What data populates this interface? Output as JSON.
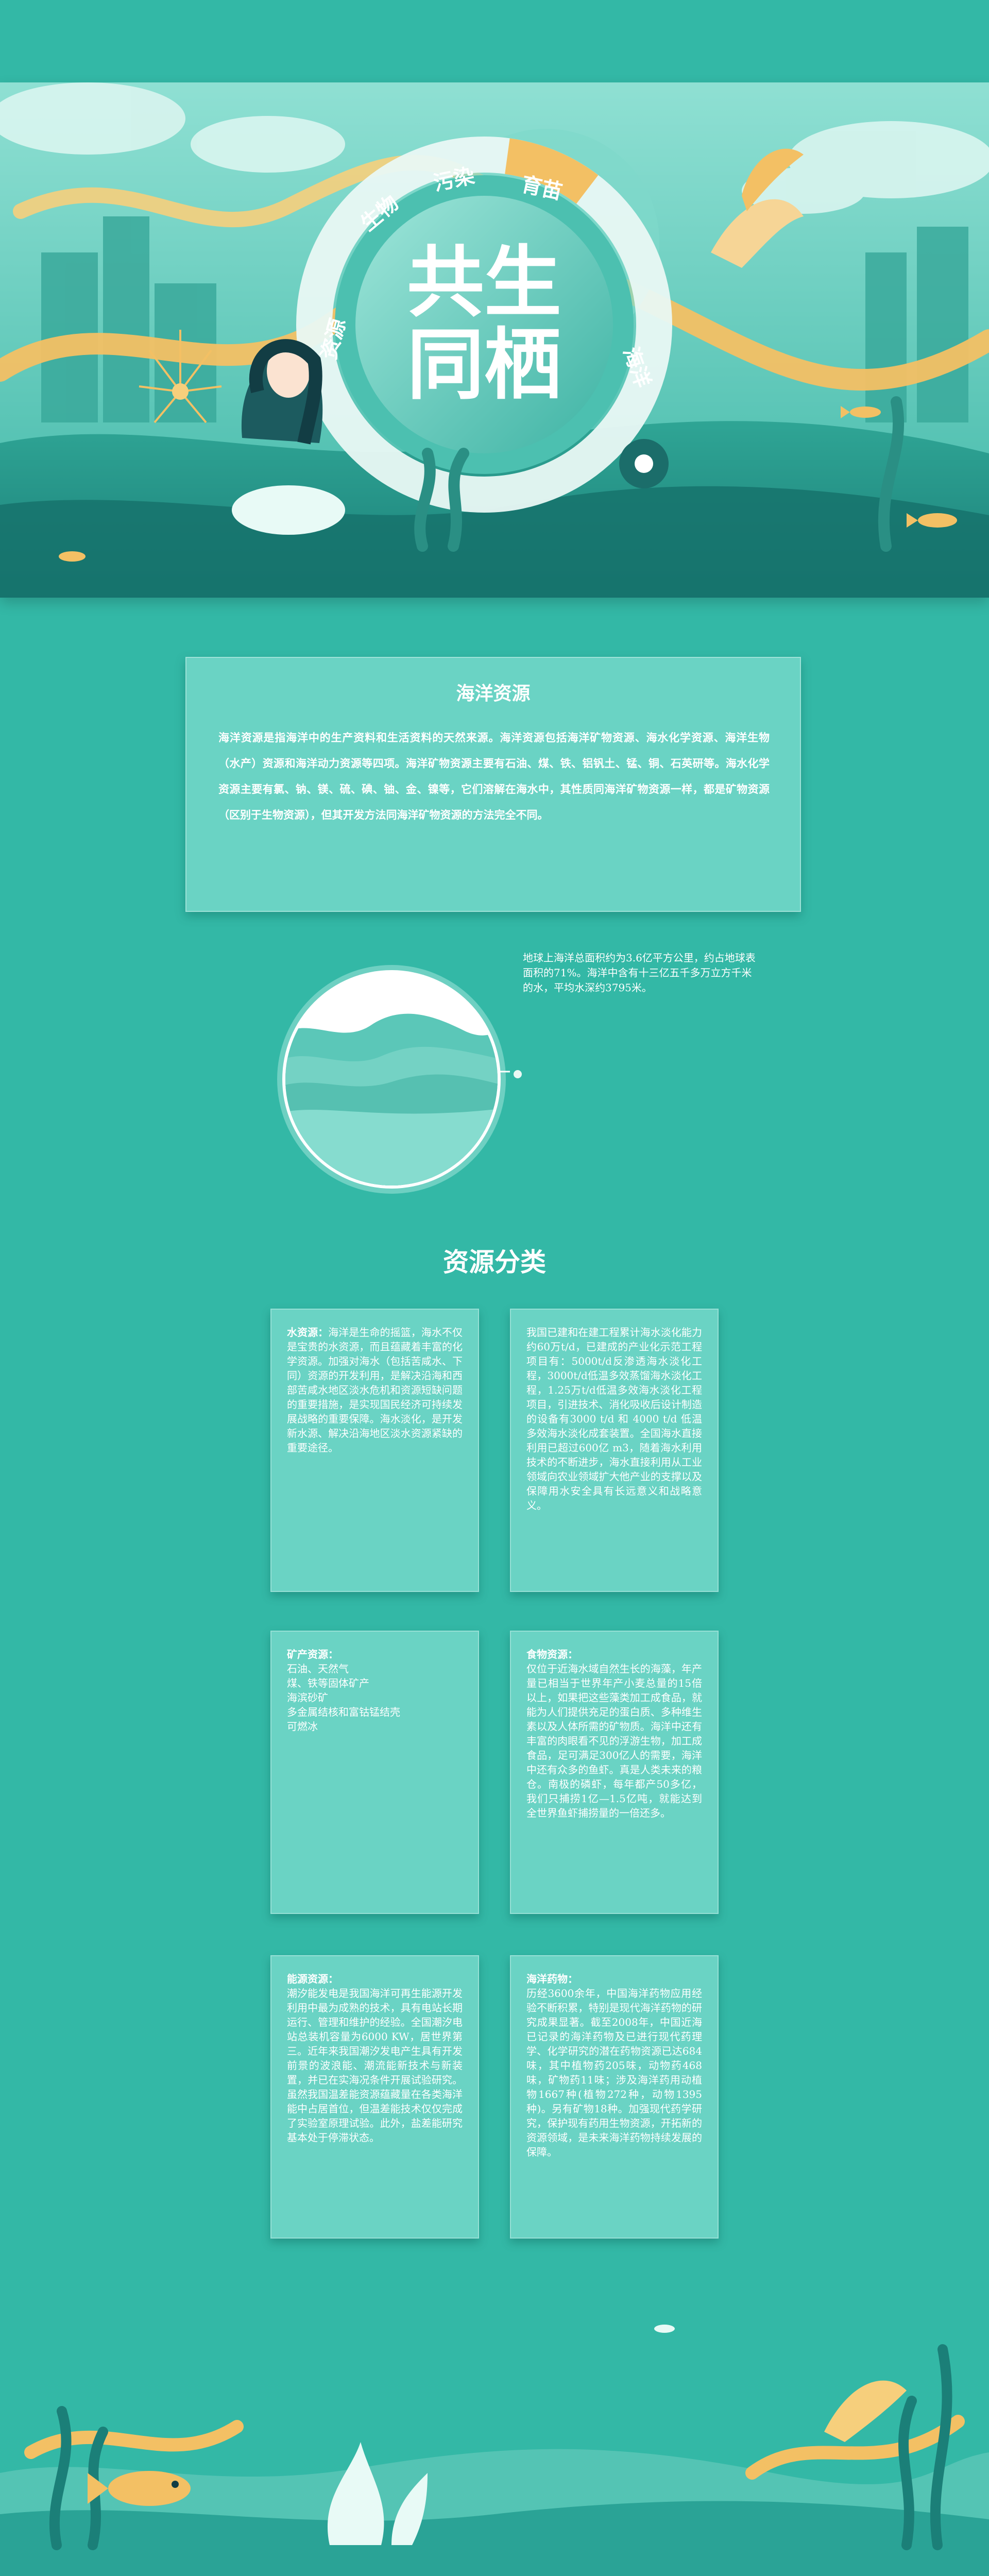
{
  "hero": {
    "title_line1": "共生",
    "title_line2": "同栖",
    "ring_words": [
      "资源",
      "生物",
      "污染",
      "育苗",
      "海洋"
    ]
  },
  "intro": {
    "title": "海洋资源",
    "body": "海洋资源是指海洋中的生产资料和生活资料的天然来源。海洋资源包括海洋矿物资源、海水化学资源、海洋生物（水产）资源和海洋动力资源等四项。海洋矿物资源主要有石油、煤、铁、铝钒土、锰、铜、石英研等。海水化学资源主要有氯、钠、镁、硫、碘、铀、金、镍等，它们溶解在海水中，其性质同海洋矿物资源一样，都是矿物资源（区别于生物资源），但其开发方法同海洋矿物资源的方法完全不同。"
  },
  "globe": {
    "note": "地球上海洋总面积约为3.6亿平方公里，约占地球表面积的71%。海洋中含有十三亿五千多万立方千米的水，平均水深约3795米。"
  },
  "categories": {
    "title": "资源分类",
    "cards": [
      {
        "label": "水资源：",
        "text": "海洋是生命的摇篮，海水不仅是宝贵的水资源，而且蕴藏着丰富的化学资源。加强对海水（包括苦咸水、下同）资源的开发利用，是解决沿海和西部苦咸水地区淡水危机和资源短缺问题的重要措施，是实现国民经济可持续发展战略的重要保障。海水淡化，是开发新水源、解决沿海地区淡水资源紧缺的重要途径。"
      },
      {
        "label": "",
        "text": "我国已建和在建工程累计海水淡化能力约60万t/d，已建成的产业化示范工程项目有：5000t/d反渗透海水淡化工程，3000t/d低温多效蒸馏海水淡化工程，1.25万t/d低温多效海水淡化工程项目，引进技术、消化吸收后设计制造的设备有3000 t/d 和 4000 t/d 低温多效海水淡化成套装置。全国海水直接利用已超过600亿 m3，随着海水利用技术的不断进步，海水直接利用从工业领域向农业领域扩大他产业的支撑以及保障用水安全具有长远意义和战略意义。"
      },
      {
        "label": "矿产资源：",
        "lines": [
          "石油、天然气",
          "煤、铁等固体矿产",
          "海滨砂矿",
          "多金属结核和富钴锰结壳",
          "可燃冰"
        ]
      },
      {
        "label": "食物资源：",
        "text": "仅位于近海水域自然生长的海藻，年产量已相当于世界年产小麦总量的15倍以上，如果把这些藻类加工成食品，就能为人们提供充足的蛋白质、多种维生素以及人体所需的矿物质。海洋中还有丰富的肉眼看不见的浮游生物，加工成食品，足可满足300亿人的需要，海洋中还有众多的鱼虾。真是人类未来的粮仓。南极的磷虾，每年都产50多亿，我们只捕捞1亿—1.5亿吨，就能达到全世界鱼虾捕捞量的一倍还多。"
      },
      {
        "label": "能源资源：",
        "text": "潮汐能发电是我国海洋可再生能源开发利用中最为成熟的技术，具有电站长期运行、管理和维护的经验。全国潮汐电站总装机容量为6000 KW，居世界第三。近年来我国潮汐发电产生具有开发前景的波浪能、潮流能新技术与新装置，并已在实海况条件开展试验研究。虽然我国温差能资源蕴藏量在各类海洋能中占居首位，但温差能技术仅仅完成了实验室原理试验。此外，盐差能研究基本处于停滞状态。"
      },
      {
        "label": "海洋药物：",
        "text": "历经3600余年，中国海洋药物应用经验不断积累，特别是现代海洋药物的研究成果显著。截至2008年，中国近海已记录的海洋药物及已进行现代药理学、化学研究的潜在药物资源已达684味，其中植物药205味，动物药468味，矿物药11味；涉及海洋药用动植物1667种(植物272种，动物1395种)。另有矿物18种。加强现代药学研究，保护现有药用生物资源，开拓新的资源领域，是未来海洋药物持续发展的保障。"
      }
    ]
  },
  "colors": {
    "background": "#33b8a6",
    "card": "#6ad3c4",
    "accent_yellow": "#f3c064",
    "deep_teal": "#1e8f86"
  }
}
